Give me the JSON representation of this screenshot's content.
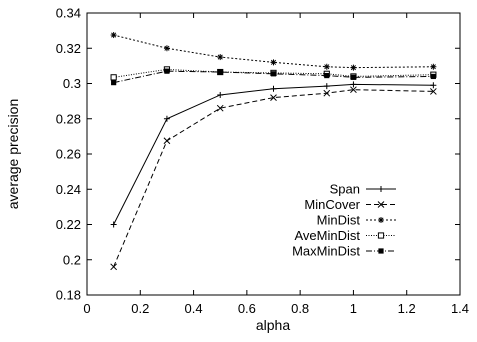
{
  "chart_data": {
    "type": "line",
    "title": "",
    "xlabel": "alpha",
    "ylabel": "average precision",
    "xlim": [
      0,
      1.4
    ],
    "ylim": [
      0.18,
      0.34
    ],
    "xticks": [
      0,
      0.2,
      0.4,
      0.6,
      0.8,
      1,
      1.2,
      1.4
    ],
    "xtick_labels": [
      "0",
      "0.2",
      "0.4",
      "0.6",
      "0.8",
      "1",
      "1.2",
      "1.4"
    ],
    "yticks": [
      0.18,
      0.2,
      0.22,
      0.24,
      0.26,
      0.28,
      0.3,
      0.32,
      0.34
    ],
    "ytick_labels": [
      "0.18",
      "0.2",
      "0.22",
      "0.24",
      "0.26",
      "0.28",
      "0.3",
      "0.32",
      "0.34"
    ],
    "grid": false,
    "legend_position": "lower-right",
    "x": [
      0.1,
      0.3,
      0.5,
      0.7,
      0.9,
      1.0,
      1.3
    ],
    "series": [
      {
        "name": "Span",
        "values": [
          0.22,
          0.28,
          0.2935,
          0.297,
          0.2985,
          0.2995,
          0.299
        ],
        "dash": "solid",
        "marker": "plus"
      },
      {
        "name": "MinCover",
        "values": [
          0.196,
          0.2675,
          0.286,
          0.292,
          0.2945,
          0.2965,
          0.2955
        ],
        "dash": "dash",
        "marker": "x"
      },
      {
        "name": "MinDist",
        "values": [
          0.3275,
          0.32,
          0.315,
          0.312,
          0.3095,
          0.309,
          0.3095
        ],
        "dash": "dot",
        "marker": "asterisk"
      },
      {
        "name": "AveMinDist",
        "values": [
          0.3035,
          0.308,
          0.3065,
          0.306,
          0.3055,
          0.304,
          0.305
        ],
        "dash": "finedot",
        "marker": "square-open"
      },
      {
        "name": "MaxMinDist",
        "values": [
          0.3005,
          0.307,
          0.3065,
          0.3055,
          0.3045,
          0.3035,
          0.304
        ],
        "dash": "dashdot",
        "marker": "square-filled"
      }
    ]
  }
}
